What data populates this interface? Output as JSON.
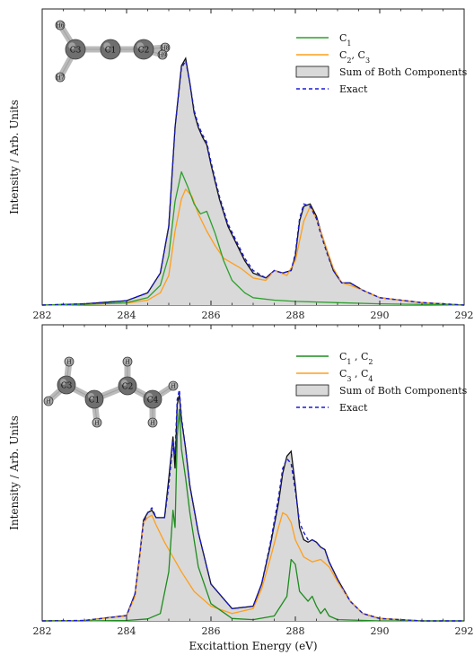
{
  "chart_data": [
    {
      "type": "line",
      "panel": "top",
      "xlabel": "",
      "ylabel": "Intensity / Arb. Units",
      "xlim": [
        282,
        292
      ],
      "ylim": [
        0,
        1.0
      ],
      "x_ticks": [
        "282",
        "284",
        "286",
        "288",
        "290",
        "292"
      ],
      "grid": false,
      "legend_position": "top-right",
      "molecule_atoms": [
        "H6",
        "C3",
        "C1",
        "C2",
        "H8",
        "H9",
        "H7"
      ],
      "series": [
        {
          "name": "C$_1$",
          "label_main": "C",
          "label_sub": "1",
          "color": "#2ca02c",
          "style": "solid",
          "x": [
            282,
            283,
            284,
            284.5,
            284.8,
            285.0,
            285.15,
            285.3,
            285.45,
            285.6,
            285.75,
            285.9,
            286.1,
            286.3,
            286.5,
            286.8,
            287.0,
            287.5,
            288,
            289,
            290,
            292
          ],
          "y": [
            0,
            0.003,
            0.01,
            0.03,
            0.08,
            0.2,
            0.42,
            0.54,
            0.48,
            0.41,
            0.37,
            0.38,
            0.29,
            0.18,
            0.1,
            0.05,
            0.03,
            0.02,
            0.015,
            0.01,
            0.005,
            0
          ]
        },
        {
          "name": "C$_2$, C$_3$",
          "label_main": "C",
          "label_sub": "2",
          "label_rest": ", C",
          "label_sub2": "3",
          "color": "#ff9f1a",
          "style": "solid",
          "x": [
            282,
            283,
            284,
            284.5,
            284.8,
            285.0,
            285.15,
            285.3,
            285.4,
            285.55,
            285.7,
            285.9,
            286.1,
            286.3,
            286.5,
            286.7,
            287.0,
            287.3,
            287.5,
            287.8,
            288.0,
            288.2,
            288.35,
            288.5,
            288.7,
            288.9,
            289.1,
            289.3,
            289.6,
            290,
            291,
            292
          ],
          "y": [
            0,
            0.002,
            0.008,
            0.02,
            0.05,
            0.12,
            0.3,
            0.43,
            0.47,
            0.44,
            0.37,
            0.3,
            0.24,
            0.19,
            0.17,
            0.15,
            0.11,
            0.1,
            0.14,
            0.12,
            0.18,
            0.34,
            0.4,
            0.35,
            0.25,
            0.15,
            0.09,
            0.08,
            0.06,
            0.03,
            0.01,
            0
          ]
        },
        {
          "name": "Sum of Both Components",
          "color": "#111111",
          "fill": "#d9d9d9",
          "style": "area",
          "x": [
            282,
            283,
            284,
            284.5,
            284.8,
            285.0,
            285.15,
            285.3,
            285.4,
            285.5,
            285.6,
            285.7,
            285.8,
            285.9,
            286.0,
            286.2,
            286.4,
            286.6,
            286.8,
            287.0,
            287.3,
            287.5,
            287.7,
            287.9,
            288.0,
            288.1,
            288.2,
            288.35,
            288.5,
            288.6,
            288.75,
            288.9,
            289.1,
            289.3,
            289.6,
            290,
            291,
            292
          ],
          "y": [
            0,
            0.005,
            0.018,
            0.05,
            0.13,
            0.32,
            0.72,
            0.97,
            1.0,
            0.9,
            0.78,
            0.72,
            0.68,
            0.65,
            0.57,
            0.43,
            0.32,
            0.25,
            0.18,
            0.13,
            0.11,
            0.14,
            0.13,
            0.14,
            0.2,
            0.34,
            0.4,
            0.41,
            0.36,
            0.3,
            0.22,
            0.14,
            0.09,
            0.09,
            0.06,
            0.03,
            0.01,
            0
          ]
        },
        {
          "name": "Exact",
          "color": "#1a1ad6",
          "style": "dashed",
          "x": [
            282,
            283,
            284,
            284.5,
            284.8,
            285.0,
            285.15,
            285.3,
            285.4,
            285.5,
            285.6,
            285.7,
            285.8,
            285.9,
            286.0,
            286.2,
            286.4,
            286.6,
            286.8,
            287.0,
            287.3,
            287.5,
            287.7,
            287.9,
            288.0,
            288.1,
            288.2,
            288.35,
            288.5,
            288.6,
            288.75,
            288.9,
            289.1,
            289.3,
            289.6,
            290,
            291,
            292
          ],
          "y": [
            0,
            0.005,
            0.018,
            0.05,
            0.13,
            0.32,
            0.72,
            0.96,
            0.99,
            0.9,
            0.79,
            0.73,
            0.69,
            0.66,
            0.58,
            0.44,
            0.33,
            0.26,
            0.19,
            0.14,
            0.11,
            0.14,
            0.13,
            0.14,
            0.21,
            0.35,
            0.41,
            0.4,
            0.35,
            0.29,
            0.21,
            0.14,
            0.09,
            0.09,
            0.06,
            0.03,
            0.01,
            0
          ]
        }
      ]
    },
    {
      "type": "line",
      "panel": "bottom",
      "xlabel": "Excitattion Energy (eV)",
      "ylabel": "Intensity / Arb. Units",
      "xlim": [
        282,
        292
      ],
      "ylim": [
        0,
        1.0
      ],
      "x_ticks": [
        "282",
        "284",
        "286",
        "288",
        "290",
        "292"
      ],
      "grid": false,
      "legend_position": "top-right",
      "molecule_atoms": [
        "H",
        "C3",
        "C1",
        "H",
        "H",
        "C2",
        "C4",
        "H",
        "H",
        "H"
      ],
      "series": [
        {
          "name": "C$_1$ , C$_2$",
          "label_main": "C",
          "label_sub": "1",
          "label_rest": " , C",
          "label_sub2": "2",
          "color": "#1e8c1e",
          "style": "solid",
          "x": [
            282,
            283,
            284,
            284.5,
            284.8,
            285.0,
            285.1,
            285.15,
            285.2,
            285.25,
            285.3,
            285.4,
            285.5,
            285.7,
            286,
            286.5,
            287,
            287.5,
            287.8,
            287.9,
            288.0,
            288.1,
            288.3,
            288.4,
            288.5,
            288.6,
            288.7,
            288.8,
            289,
            290,
            292
          ],
          "y": [
            0,
            0,
            0.002,
            0.008,
            0.03,
            0.2,
            0.45,
            0.38,
            0.75,
            0.86,
            0.7,
            0.58,
            0.44,
            0.22,
            0.07,
            0.01,
            0.005,
            0.02,
            0.1,
            0.25,
            0.23,
            0.12,
            0.08,
            0.1,
            0.06,
            0.03,
            0.05,
            0.02,
            0.005,
            0,
            0
          ]
        },
        {
          "name": "C$_3$ , C$_4$",
          "label_main": "C",
          "label_sub": "3",
          "label_rest": " , C",
          "label_sub2": "4",
          "color": "#ff9f1a",
          "style": "solid",
          "x": [
            282,
            283,
            284,
            284.2,
            284.3,
            284.4,
            284.5,
            284.6,
            284.7,
            284.9,
            285.1,
            285.3,
            285.6,
            286,
            286.5,
            287,
            287.2,
            287.4,
            287.6,
            287.7,
            287.8,
            287.9,
            288.0,
            288.2,
            288.4,
            288.6,
            288.8,
            289.0,
            289.3,
            289.6,
            290,
            291,
            292
          ],
          "y": [
            0,
            0.002,
            0.02,
            0.1,
            0.24,
            0.4,
            0.42,
            0.43,
            0.39,
            0.32,
            0.26,
            0.2,
            0.12,
            0.06,
            0.03,
            0.05,
            0.13,
            0.25,
            0.38,
            0.44,
            0.43,
            0.4,
            0.33,
            0.26,
            0.24,
            0.25,
            0.22,
            0.16,
            0.08,
            0.03,
            0.01,
            0,
            0
          ]
        },
        {
          "name": "Sum of Both Components",
          "color": "#111111",
          "fill": "#d9d9d9",
          "style": "area",
          "x": [
            282,
            283,
            284,
            284.2,
            284.3,
            284.4,
            284.5,
            284.6,
            284.7,
            284.9,
            285.0,
            285.1,
            285.15,
            285.2,
            285.25,
            285.3,
            285.4,
            285.5,
            285.7,
            286,
            286.5,
            287,
            287.2,
            287.4,
            287.6,
            287.7,
            287.8,
            287.9,
            288.0,
            288.1,
            288.2,
            288.3,
            288.4,
            288.5,
            288.6,
            288.7,
            288.8,
            289.0,
            289.3,
            289.6,
            290,
            291,
            292
          ],
          "y": [
            0,
            0.002,
            0.022,
            0.11,
            0.25,
            0.41,
            0.44,
            0.45,
            0.42,
            0.42,
            0.58,
            0.75,
            0.62,
            0.88,
            0.92,
            0.82,
            0.7,
            0.55,
            0.36,
            0.15,
            0.05,
            0.06,
            0.15,
            0.3,
            0.48,
            0.6,
            0.67,
            0.69,
            0.55,
            0.38,
            0.33,
            0.32,
            0.33,
            0.32,
            0.3,
            0.29,
            0.24,
            0.17,
            0.08,
            0.03,
            0.01,
            0,
            0
          ]
        },
        {
          "name": "Exact",
          "color": "#1a1ad6",
          "style": "dashed",
          "x": [
            282,
            283,
            284,
            284.2,
            284.3,
            284.4,
            284.5,
            284.6,
            284.7,
            284.9,
            285.0,
            285.1,
            285.15,
            285.2,
            285.25,
            285.3,
            285.4,
            285.5,
            285.7,
            286,
            286.5,
            287,
            287.2,
            287.4,
            287.6,
            287.7,
            287.8,
            287.9,
            288.0,
            288.1,
            288.2,
            288.3,
            288.4,
            288.5,
            288.6,
            288.7,
            288.8,
            289.0,
            289.3,
            289.6,
            290,
            291,
            292
          ],
          "y": [
            0,
            0.002,
            0.022,
            0.11,
            0.25,
            0.4,
            0.44,
            0.46,
            0.42,
            0.42,
            0.55,
            0.73,
            0.68,
            0.9,
            0.94,
            0.83,
            0.7,
            0.55,
            0.36,
            0.15,
            0.05,
            0.06,
            0.15,
            0.31,
            0.5,
            0.62,
            0.66,
            0.64,
            0.53,
            0.4,
            0.36,
            0.33,
            0.33,
            0.32,
            0.3,
            0.29,
            0.24,
            0.17,
            0.08,
            0.03,
            0.01,
            0,
            0
          ]
        }
      ]
    }
  ]
}
